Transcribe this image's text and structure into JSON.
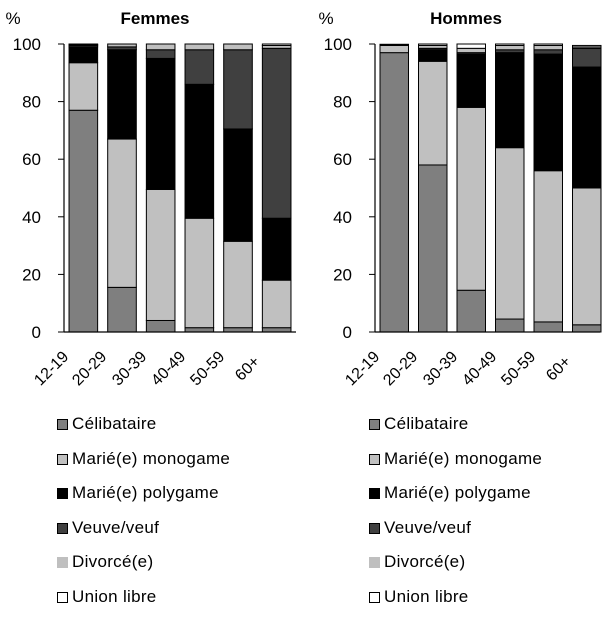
{
  "chart_data": [
    {
      "type": "bar",
      "stacked": true,
      "title": "Femmes",
      "ylabel": "%",
      "ylim": [
        0,
        100
      ],
      "yticks": [
        0,
        20,
        40,
        60,
        80,
        100
      ],
      "categories": [
        "12-19",
        "20-29",
        "30-39",
        "40-49",
        "50-59",
        "60+"
      ],
      "series": [
        {
          "name": "Célibataire",
          "color": "#7f7f7f",
          "values": [
            77,
            15.5,
            4,
            1.5,
            1.5,
            1.5
          ]
        },
        {
          "name": "Marié(e) monogame",
          "color": "#c0c0c0",
          "values": [
            16.5,
            51.5,
            45.5,
            38,
            30,
            16.5
          ]
        },
        {
          "name": "Marié(e) polygame",
          "color": "#000000",
          "values": [
            5.5,
            31,
            45.5,
            46.5,
            39,
            21.5
          ]
        },
        {
          "name": "Veuve/veuf",
          "color": "#404040",
          "values": [
            0.5,
            1,
            3,
            12,
            27.5,
            59
          ]
        },
        {
          "name": "Divorcé(e)",
          "color": "#bfbfbf",
          "values": [
            0.3,
            1,
            2,
            2,
            2,
            1
          ]
        },
        {
          "name": "Union libre",
          "color": "#ffffff",
          "values": [
            0.2,
            0,
            0,
            0,
            0,
            0.5
          ]
        }
      ]
    },
    {
      "type": "bar",
      "stacked": true,
      "title": "Hommes",
      "ylabel": "%",
      "ylim": [
        0,
        100
      ],
      "yticks": [
        0,
        20,
        40,
        60,
        80,
        100
      ],
      "categories": [
        "12-19",
        "20-29",
        "30-39",
        "40-49",
        "50-59",
        "60+"
      ],
      "series": [
        {
          "name": "Célibataire",
          "color": "#7f7f7f",
          "values": [
            97,
            58,
            14.5,
            4.5,
            3.5,
            2.5
          ]
        },
        {
          "name": "Marié(e) monogame",
          "color": "#c0c0c0",
          "values": [
            2.5,
            36,
            63.5,
            59.5,
            52.5,
            47.5
          ]
        },
        {
          "name": "Marié(e) polygame",
          "color": "#000000",
          "values": [
            0.2,
            4,
            18.5,
            33,
            40.5,
            42
          ]
        },
        {
          "name": "Veuve/veuf",
          "color": "#404040",
          "values": [
            0,
            0.5,
            0.5,
            1,
            1.5,
            6.5
          ]
        },
        {
          "name": "Divorcé(e)",
          "color": "#bfbfbf",
          "values": [
            0.2,
            1,
            1.5,
            1.5,
            1.5,
            0.5
          ]
        },
        {
          "name": "Union libre",
          "color": "#ffffff",
          "values": [
            0,
            0.5,
            1.5,
            0.5,
            0.5,
            0.5
          ]
        }
      ]
    }
  ]
}
